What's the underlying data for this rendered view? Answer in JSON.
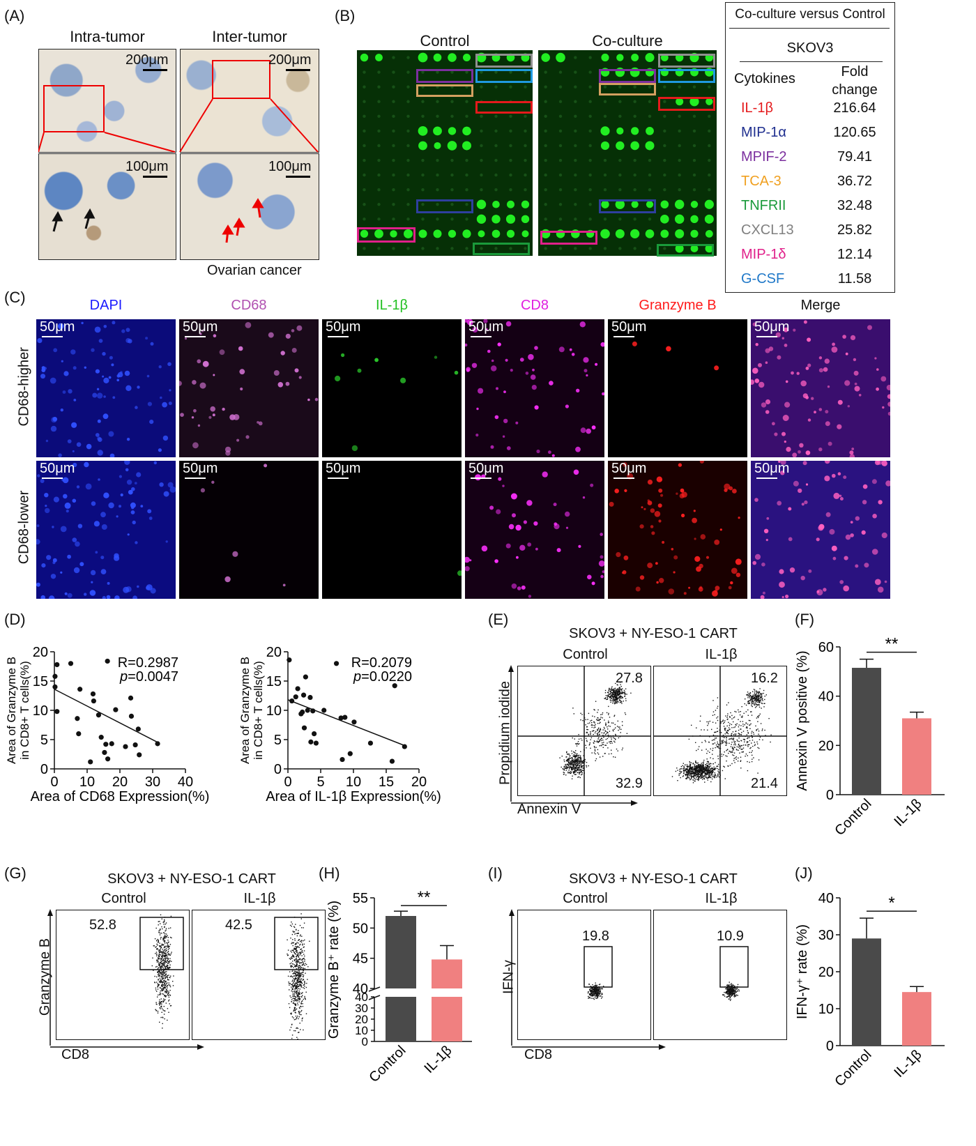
{
  "panel_labels": {
    "a": "(A)",
    "b": "(B)",
    "c": "(C)",
    "d": "(D)",
    "e": "(E)",
    "f": "(F)",
    "g": "(G)",
    "h": "(H)",
    "i": "(I)",
    "j": "(J)"
  },
  "panelA": {
    "titles": [
      "Intra-tumor",
      "Inter-tumor"
    ],
    "scale_top": "200μm",
    "scale_bottom": "100μm",
    "caption": "Ovarian cancer"
  },
  "panelB": {
    "titles": [
      "Control",
      "Co-culture"
    ],
    "table_header": "Co-culture versus Control",
    "cell_line": "SKOV3",
    "col1": "Cytokines",
    "col2": "Fold change",
    "rows": [
      {
        "name": "IL-1β",
        "value": "216.64",
        "color": "#e41a1c"
      },
      {
        "name": "MIP-1α",
        "value": "120.65",
        "color": "#1f2f8f"
      },
      {
        "name": "MPIF-2",
        "value": "79.41",
        "color": "#7b2f9e"
      },
      {
        "name": "TCA-3",
        "value": "36.72",
        "color": "#f0a020"
      },
      {
        "name": "TNFRII",
        "value": "32.48",
        "color": "#1a9a3a"
      },
      {
        "name": "CXCL13",
        "value": "25.82",
        "color": "#808080"
      },
      {
        "name": "MIP-1δ",
        "value": "12.14",
        "color": "#e0208a"
      },
      {
        "name": "G-CSF",
        "value": "11.58",
        "color": "#1f78c8"
      }
    ]
  },
  "panelC": {
    "columns": [
      {
        "label": "DAPI",
        "color": "#1a1aff"
      },
      {
        "label": "CD68",
        "color": "#b050b0"
      },
      {
        "label": "IL-1β",
        "color": "#22c022"
      },
      {
        "label": "CD8",
        "color": "#e020e0"
      },
      {
        "label": "Granzyme B",
        "color": "#ff1a1a"
      },
      {
        "label": "Merge",
        "color": "#111111"
      }
    ],
    "rows": [
      "CD68-higher",
      "CD68-lower"
    ],
    "scale": "50μm"
  },
  "chart_data": [
    {
      "id": "D1",
      "type": "scatter",
      "xlabel": "Area of CD68 Expression(%)",
      "ylabel": "Area of Granzyme B in CD8+ T cells(%)",
      "xlim": [
        0,
        40
      ],
      "ylim": [
        0,
        20
      ],
      "xticks": [
        0,
        10,
        20,
        30,
        40
      ],
      "yticks": [
        0,
        5,
        10,
        15,
        20
      ],
      "annotation_r": "R=0.2987",
      "annotation_p": "p=0.0047",
      "fit_line": [
        [
          0,
          13.6
        ],
        [
          32,
          4.4
        ]
      ],
      "points": [
        [
          0.2,
          15.8
        ],
        [
          0.2,
          14.0
        ],
        [
          0.8,
          17.8
        ],
        [
          0.8,
          9.8
        ],
        [
          5,
          18
        ],
        [
          7,
          8.6
        ],
        [
          7.4,
          6
        ],
        [
          7.8,
          13.6
        ],
        [
          11,
          1.2
        ],
        [
          11.8,
          12.8
        ],
        [
          12,
          11.6
        ],
        [
          13.5,
          9.2
        ],
        [
          14.3,
          5.4
        ],
        [
          15.3,
          2.8
        ],
        [
          15.7,
          4.2
        ],
        [
          16.2,
          18.4
        ],
        [
          16.3,
          1.7
        ],
        [
          17.5,
          4.3
        ],
        [
          18.7,
          10.1
        ],
        [
          21.7,
          3.8
        ],
        [
          23.3,
          12.1
        ],
        [
          23.5,
          9
        ],
        [
          24.7,
          4.1
        ],
        [
          25.6,
          6.8
        ],
        [
          25.9,
          2.4
        ],
        [
          31.5,
          4.3
        ]
      ]
    },
    {
      "id": "D2",
      "type": "scatter",
      "xlabel": "Area of IL-1β Expression(%)",
      "ylabel": "Area of Granzyme B in CD8+ T cells(%)",
      "xlim": [
        0,
        20
      ],
      "ylim": [
        0,
        20
      ],
      "xticks": [
        0,
        5,
        10,
        15,
        20
      ],
      "yticks": [
        0,
        5,
        10,
        15,
        20
      ],
      "annotation_r": "R=0.2079",
      "annotation_p": "p=0.0220",
      "fit_line": [
        [
          0,
          11.8
        ],
        [
          18,
          3.9
        ]
      ],
      "points": [
        [
          0.2,
          18.6
        ],
        [
          0.6,
          11.6
        ],
        [
          1.2,
          12.3
        ],
        [
          1.5,
          13.7
        ],
        [
          2,
          9.4
        ],
        [
          2.2,
          9.7
        ],
        [
          2.4,
          12.6
        ],
        [
          2.5,
          7
        ],
        [
          2.7,
          15.7
        ],
        [
          3,
          10
        ],
        [
          3.4,
          12.2
        ],
        [
          3.5,
          4.6
        ],
        [
          3.8,
          9.9
        ],
        [
          4,
          6
        ],
        [
          4.3,
          4.4
        ],
        [
          5.5,
          10
        ],
        [
          7.4,
          18
        ],
        [
          8.1,
          8.7
        ],
        [
          8.3,
          1.6
        ],
        [
          8.7,
          8.8
        ],
        [
          9.5,
          2.6
        ],
        [
          10.1,
          8
        ],
        [
          12.6,
          4.4
        ],
        [
          15.9,
          1.3
        ],
        [
          16.3,
          14.2
        ],
        [
          17.8,
          3.8
        ]
      ]
    },
    {
      "id": "F",
      "type": "bar",
      "categories": [
        "Control",
        "IL-1β"
      ],
      "values": [
        51.5,
        31
      ],
      "errors": [
        3.5,
        2.5
      ],
      "ylabel": "Annexin V positive (%)",
      "ylim": [
        0,
        60
      ],
      "yticks": [
        0,
        20,
        40,
        60
      ],
      "colors": [
        "#4a4a4a",
        "#f08080"
      ],
      "significance": "**"
    },
    {
      "id": "H",
      "type": "bar",
      "categories": [
        "Control",
        "IL-1β"
      ],
      "values": [
        52,
        44.8
      ],
      "errors": [
        0.8,
        2.3
      ],
      "ylabel": "Granzyme B⁺ rate (%)",
      "ylim_upper": [
        40,
        55
      ],
      "ylim_lower": [
        0,
        40
      ],
      "yticks_upper": [
        40,
        45,
        50,
        55
      ],
      "yticks_lower": [
        0,
        10,
        20,
        30,
        40
      ],
      "colors": [
        "#4a4a4a",
        "#f08080"
      ],
      "significance": "**"
    },
    {
      "id": "J",
      "type": "bar",
      "categories": [
        "Control",
        "IL-1β"
      ],
      "values": [
        29,
        14.5
      ],
      "errors": [
        5.5,
        1.5
      ],
      "ylabel": "IFN-γ⁺ rate (%)",
      "ylim": [
        0,
        40
      ],
      "yticks": [
        0,
        10,
        20,
        30,
        40
      ],
      "colors": [
        "#4a4a4a",
        "#f08080"
      ],
      "significance": "*"
    }
  ],
  "panelE": {
    "title": "SKOV3 + NY-ESO-1 CART",
    "conditions": [
      "Control",
      "IL-1β"
    ],
    "ylabel": "Propidium iodide",
    "xlabel": "Annexin V",
    "ctrl_ur": "27.8",
    "ctrl_lr": "32.9",
    "il_ur": "16.2",
    "il_lr": "21.4"
  },
  "panelG": {
    "title": "SKOV3 + NY-ESO-1 CART",
    "conditions": [
      "Control",
      "IL-1β"
    ],
    "ylabel": "Granzyme B",
    "xlabel": "CD8",
    "ctrl_val": "52.8",
    "il_val": "42.5"
  },
  "panelI": {
    "title": "SKOV3 + NY-ESO-1 CART",
    "conditions": [
      "Control",
      "IL-1β"
    ],
    "ylabel": "IFN-γ",
    "xlabel": "CD8",
    "ctrl_val": "19.8",
    "il_val": "10.9"
  }
}
